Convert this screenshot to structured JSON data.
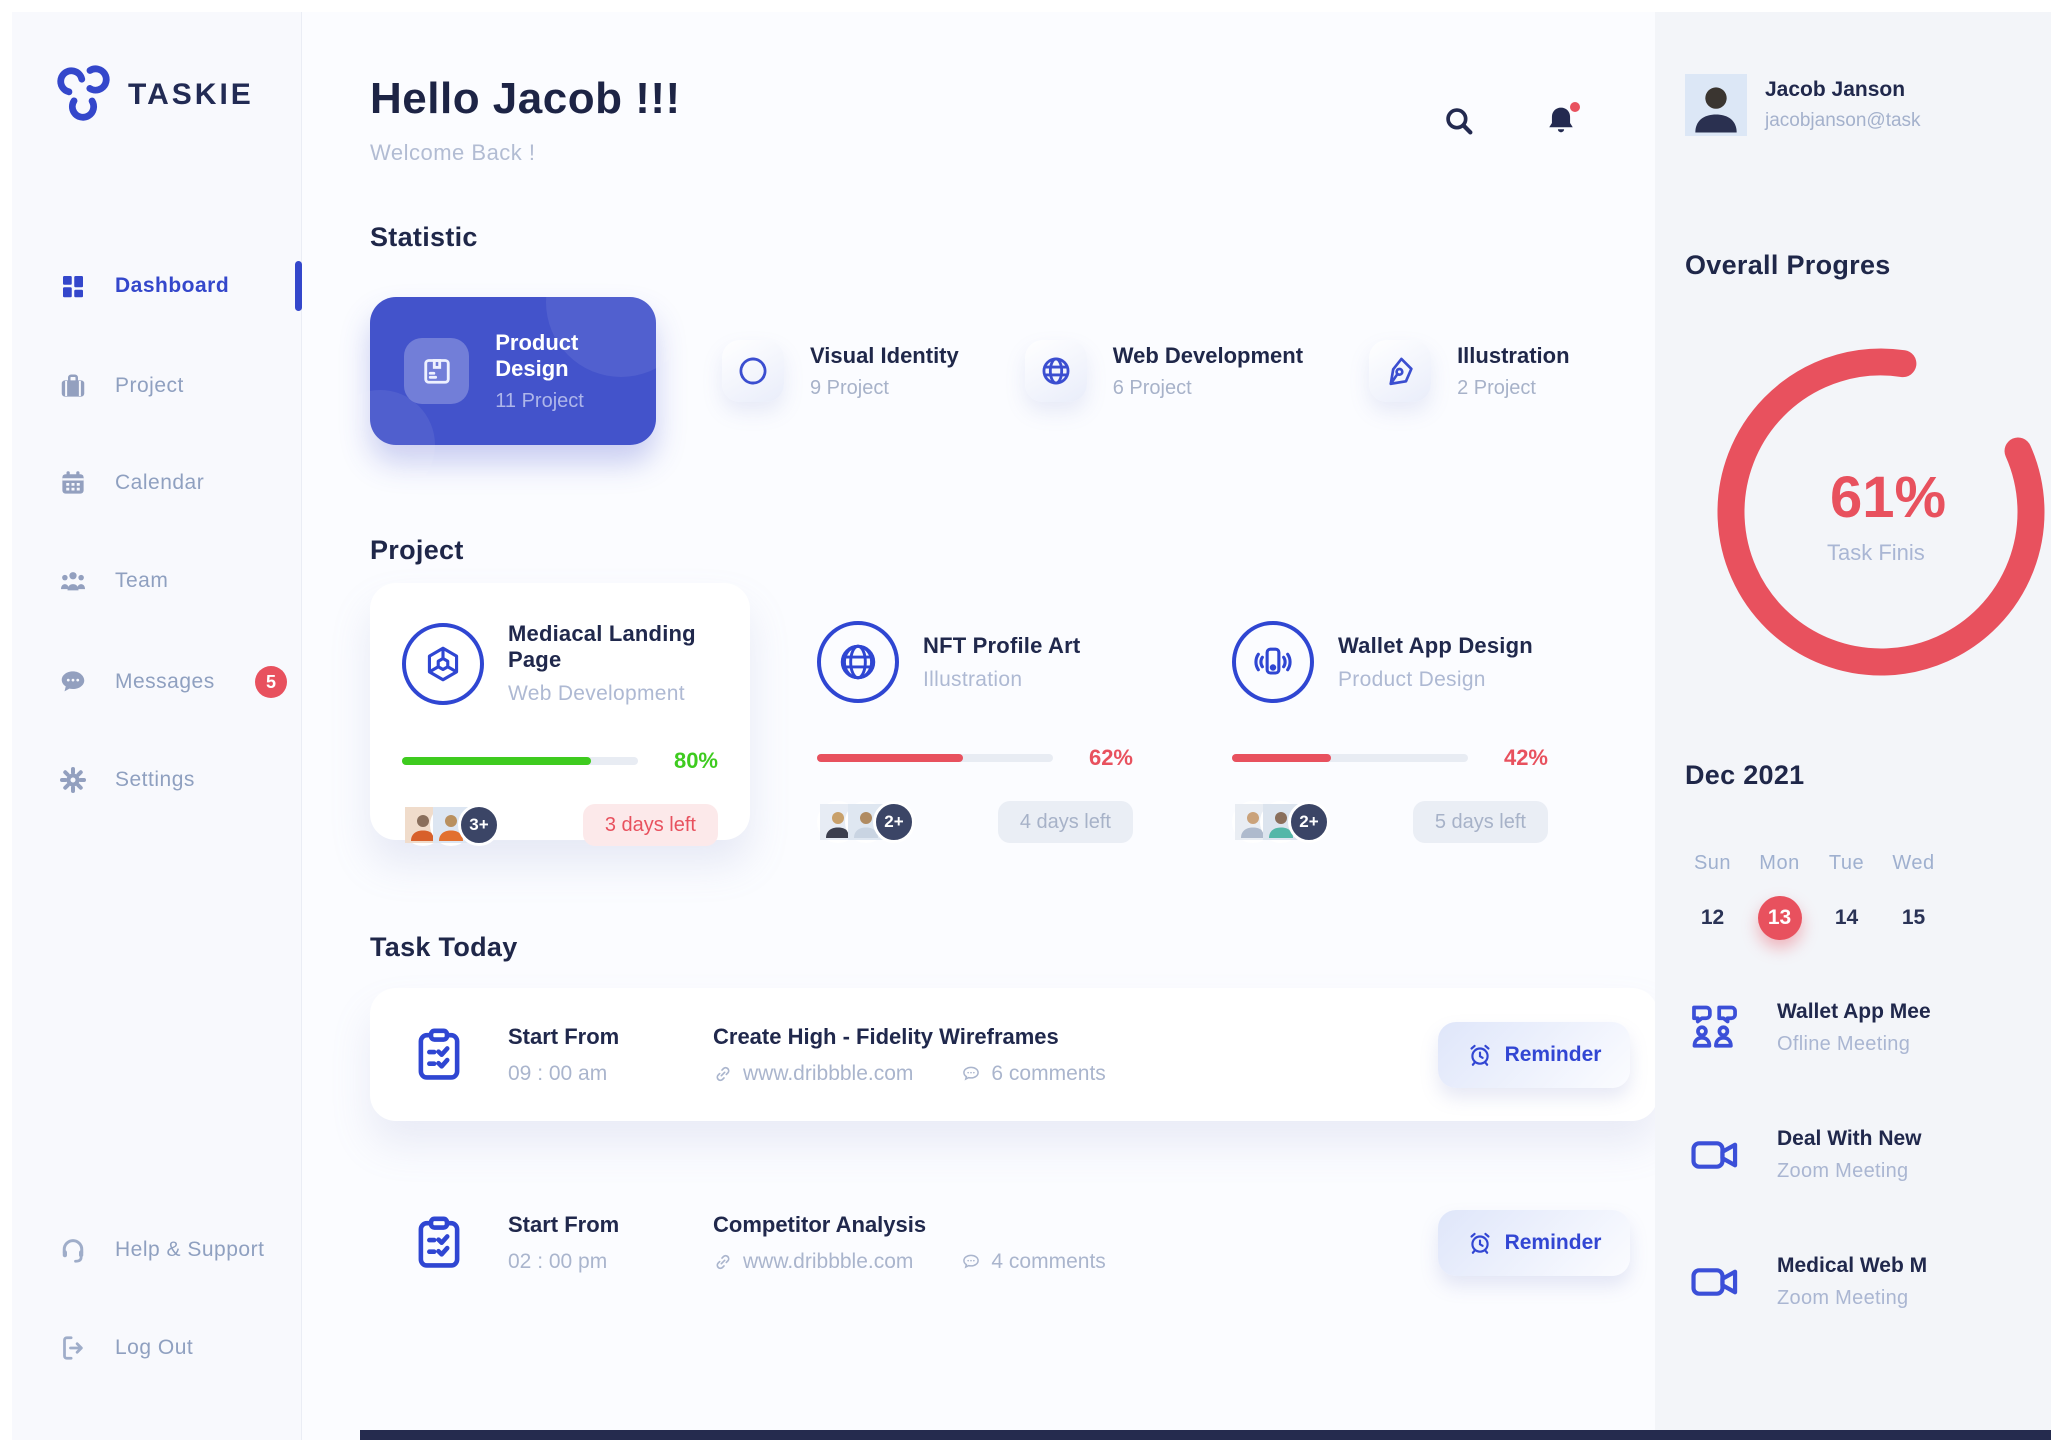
{
  "brand": {
    "name": "TASKIE"
  },
  "colors": {
    "primary_blue": "#3447cb",
    "navy": "#222b54",
    "red": "#e8515e",
    "green": "#3ecb1f",
    "muted": "#a7b2c9"
  },
  "sidebar": {
    "items": [
      {
        "label": "Dashboard"
      },
      {
        "label": "Project"
      },
      {
        "label": "Calendar"
      },
      {
        "label": "Team"
      },
      {
        "label": "Messages",
        "badge": "5"
      },
      {
        "label": "Settings"
      }
    ],
    "help": "Help & Support",
    "logout": "Log Out"
  },
  "header": {
    "greeting": "Hello Jacob !!!",
    "welcome": "Welcome Back !"
  },
  "statistic": {
    "title": "Statistic",
    "cards": [
      {
        "title": "Product Design",
        "count": "11 Project"
      },
      {
        "title": "Visual Identity",
        "count": "9 Project"
      },
      {
        "title": "Web Development",
        "count": "6 Project"
      },
      {
        "title": "Illustration",
        "count": "2 Project"
      }
    ]
  },
  "projects": {
    "title": "Project",
    "cards": [
      {
        "title": "Mediacal Landing Page",
        "category": "Web Development",
        "percent": 80,
        "percent_label": "80%",
        "days_left": "3 days left",
        "more": "3+"
      },
      {
        "title": "NFT Profile Art",
        "category": "Illustration",
        "percent": 62,
        "percent_label": "62%",
        "days_left": "4 days left",
        "more": "2+"
      },
      {
        "title": "Wallet App Design",
        "category": "Product Design",
        "percent": 42,
        "percent_label": "42%",
        "days_left": "5 days left",
        "more": "2+"
      }
    ]
  },
  "tasks": {
    "title": "Task Today",
    "items": [
      {
        "start_label": "Start From",
        "time": "09 : 00 am",
        "title": "Create High - Fidelity Wireframes",
        "url": "www.dribbble.com",
        "comments": "6 comments",
        "action": "Reminder"
      },
      {
        "start_label": "Start From",
        "time": "02 : 00 pm",
        "title": "Competitor Analysis",
        "url": "www.dribbble.com",
        "comments": "4 comments",
        "action": "Reminder"
      }
    ]
  },
  "profile": {
    "name": "Jacob Janson",
    "email": "jacobjanson@task"
  },
  "overall": {
    "title": "Overall Progres",
    "percent": 61,
    "percent_label": "61%",
    "caption": "Task Finis"
  },
  "calendar": {
    "month": "Dec 2021",
    "days": [
      "Sun",
      "Mon",
      "Tue",
      "Wed"
    ],
    "dates": [
      "12",
      "13",
      "14",
      "15"
    ],
    "selected_date": "13"
  },
  "meetings": [
    {
      "title": "Wallet App Mee",
      "type": "Ofline Meeting"
    },
    {
      "title": "Deal With New",
      "type": "Zoom Meeting"
    },
    {
      "title": "Medical Web M",
      "type": "Zoom Meeting"
    }
  ]
}
